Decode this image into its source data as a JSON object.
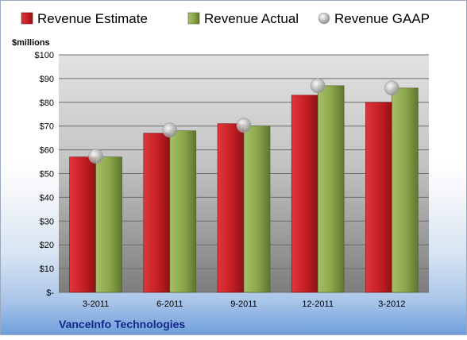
{
  "chart_data": {
    "type": "bar",
    "title": "",
    "unit_label": "$millions",
    "company": "VanceInfo Technologies",
    "categories": [
      "3-2011",
      "6-2011",
      "9-2011",
      "12-2011",
      "3-2012"
    ],
    "series": [
      {
        "name": "Revenue Estimate",
        "kind": "bar",
        "color": "#cc2229",
        "values": [
          57,
          67,
          71,
          83,
          80
        ]
      },
      {
        "name": "Revenue Actual",
        "kind": "bar",
        "color": "#8faa4e",
        "values": [
          57,
          68,
          70,
          87,
          86
        ]
      },
      {
        "name": "Revenue GAAP",
        "kind": "marker",
        "color": "#b8b8b8",
        "values": [
          57.3,
          68.3,
          70.3,
          87,
          86
        ]
      }
    ],
    "y_ticks": [
      "$-",
      "$10",
      "$20",
      "$30",
      "$40",
      "$50",
      "$60",
      "$70",
      "$80",
      "$90",
      "$100"
    ],
    "ylim": [
      0,
      100
    ],
    "grid": true,
    "legend_position": "top"
  }
}
